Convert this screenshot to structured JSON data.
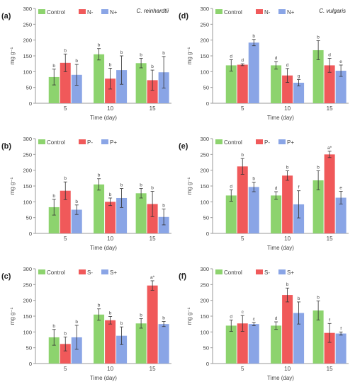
{
  "colors": {
    "Control": "#8dd36e",
    "N-": "#f0595a",
    "N+": "#8aa5e6",
    "P-": "#f0595a",
    "P+": "#8aa5e6",
    "S-": "#f0595a",
    "S+": "#8aa5e6",
    "axis": "#9a9a9a",
    "error": "#333333",
    "label": "#222222",
    "tick": "#444444"
  },
  "chart_data": [
    {
      "panel": "(a)",
      "type": "bar",
      "title": "C. reinhardtii",
      "xlabel": "Time (day)",
      "ylabel": "mg g⁻¹",
      "ylim": [
        0,
        300
      ],
      "yticks": [
        "0",
        "50",
        "100",
        "150",
        "200",
        "250",
        "300"
      ],
      "categories": [
        "5",
        "10",
        "15"
      ],
      "series": [
        {
          "name": "Control",
          "values": [
            83,
            155,
            127
          ],
          "errors": [
            25,
            18,
            15
          ],
          "letters": [
            "b",
            "b",
            "b"
          ]
        },
        {
          "name": "N-",
          "values": [
            128,
            78,
            73
          ],
          "errors": [
            28,
            33,
            32
          ],
          "letters": [
            "b",
            "b",
            "b"
          ]
        },
        {
          "name": "N+",
          "values": [
            90,
            105,
            98
          ],
          "errors": [
            33,
            45,
            50
          ],
          "letters": [
            "b",
            "b",
            "b"
          ]
        }
      ]
    },
    {
      "panel": "(b)",
      "type": "bar",
      "title": "",
      "xlabel": "Time (day)",
      "ylabel": "mg g⁻¹",
      "ylim": [
        0,
        300
      ],
      "yticks": [
        "0",
        "50",
        "100",
        "150",
        "200",
        "250",
        "300"
      ],
      "categories": [
        "5",
        "10",
        "15"
      ],
      "series": [
        {
          "name": "Control",
          "values": [
            83,
            155,
            127
          ],
          "errors": [
            25,
            18,
            15
          ],
          "letters": [
            "b",
            "b",
            "b"
          ]
        },
        {
          "name": "P-",
          "values": [
            135,
            100,
            93
          ],
          "errors": [
            28,
            12,
            40
          ],
          "letters": [
            "b",
            "b",
            "b"
          ]
        },
        {
          "name": "P+",
          "values": [
            75,
            112,
            52
          ],
          "errors": [
            15,
            30,
            25
          ],
          "letters": [
            "b",
            "b",
            "b"
          ]
        }
      ]
    },
    {
      "panel": "(c)",
      "type": "bar",
      "title": "",
      "xlabel": "Time (day)",
      "ylabel": "mg g⁻¹",
      "ylim": [
        0,
        300
      ],
      "yticks": [
        "0",
        "50",
        "100",
        "150",
        "200",
        "250",
        "300"
      ],
      "categories": [
        "5",
        "10",
        "15"
      ],
      "series": [
        {
          "name": "Control",
          "values": [
            83,
            155,
            127
          ],
          "errors": [
            25,
            18,
            15
          ],
          "letters": [
            "b",
            "b",
            "b"
          ]
        },
        {
          "name": "S-",
          "values": [
            62,
            137,
            247
          ],
          "errors": [
            22,
            12,
            15
          ],
          "letters": [
            "b",
            "b",
            "a*"
          ]
        },
        {
          "name": "S+",
          "values": [
            83,
            88,
            125
          ],
          "errors": [
            38,
            28,
            8
          ],
          "letters": [
            "b",
            "b",
            "b"
          ]
        }
      ]
    },
    {
      "panel": "(d)",
      "type": "bar",
      "title": "C. vulgaris",
      "xlabel": "Time (day)",
      "ylabel": "mg g⁻¹",
      "ylim": [
        0,
        300
      ],
      "yticks": [
        "0",
        "50",
        "100",
        "150",
        "200",
        "250",
        "300"
      ],
      "categories": [
        "5",
        "10",
        "15"
      ],
      "series": [
        {
          "name": "Control",
          "values": [
            120,
            120,
            168
          ],
          "errors": [
            18,
            12,
            30
          ],
          "letters": [
            "d",
            "d",
            "b"
          ]
        },
        {
          "name": "N-",
          "values": [
            122,
            88,
            120
          ],
          "errors": [
            3,
            22,
            22
          ],
          "letters": [
            "d",
            "d",
            "d"
          ]
        },
        {
          "name": "N+",
          "values": [
            192,
            65,
            103
          ],
          "errors": [
            10,
            10,
            18
          ],
          "letters": [
            "b",
            "g",
            "e"
          ]
        }
      ]
    },
    {
      "panel": "(e)",
      "type": "bar",
      "title": "",
      "xlabel": "Time (day)",
      "ylabel": "mg g⁻¹",
      "ylim": [
        0,
        300
      ],
      "yticks": [
        "0",
        "50",
        "100",
        "150",
        "200",
        "250",
        "300"
      ],
      "categories": [
        "5",
        "10",
        "15"
      ],
      "series": [
        {
          "name": "Control",
          "values": [
            120,
            120,
            168
          ],
          "errors": [
            18,
            12,
            30
          ],
          "letters": [
            "d",
            "d",
            "b"
          ]
        },
        {
          "name": "P-",
          "values": [
            212,
            183,
            250
          ],
          "errors": [
            25,
            15,
            10
          ],
          "letters": [
            "b",
            "b",
            "a*"
          ]
        },
        {
          "name": "P+",
          "values": [
            147,
            92,
            113
          ],
          "errors": [
            15,
            43,
            20
          ],
          "letters": [
            "b",
            "f",
            "e"
          ]
        }
      ]
    },
    {
      "panel": "(f)",
      "type": "bar",
      "title": "",
      "xlabel": "Time (day)",
      "ylabel": "mg g⁻¹",
      "ylim": [
        0,
        300
      ],
      "yticks": [
        "0",
        "50",
        "100",
        "150",
        "200",
        "250",
        "300"
      ],
      "categories": [
        "5",
        "10",
        "15"
      ],
      "series": [
        {
          "name": "Control",
          "values": [
            120,
            120,
            168
          ],
          "errors": [
            18,
            12,
            30
          ],
          "letters": [
            "d",
            "d",
            "b"
          ]
        },
        {
          "name": "S-",
          "values": [
            127,
            217,
            97
          ],
          "errors": [
            25,
            22,
            30
          ],
          "letters": [
            "c",
            "b",
            "f"
          ]
        },
        {
          "name": "S+",
          "values": [
            125,
            160,
            95
          ],
          "errors": [
            5,
            35,
            5
          ],
          "letters": [
            "c",
            "b",
            "f"
          ]
        }
      ]
    }
  ]
}
